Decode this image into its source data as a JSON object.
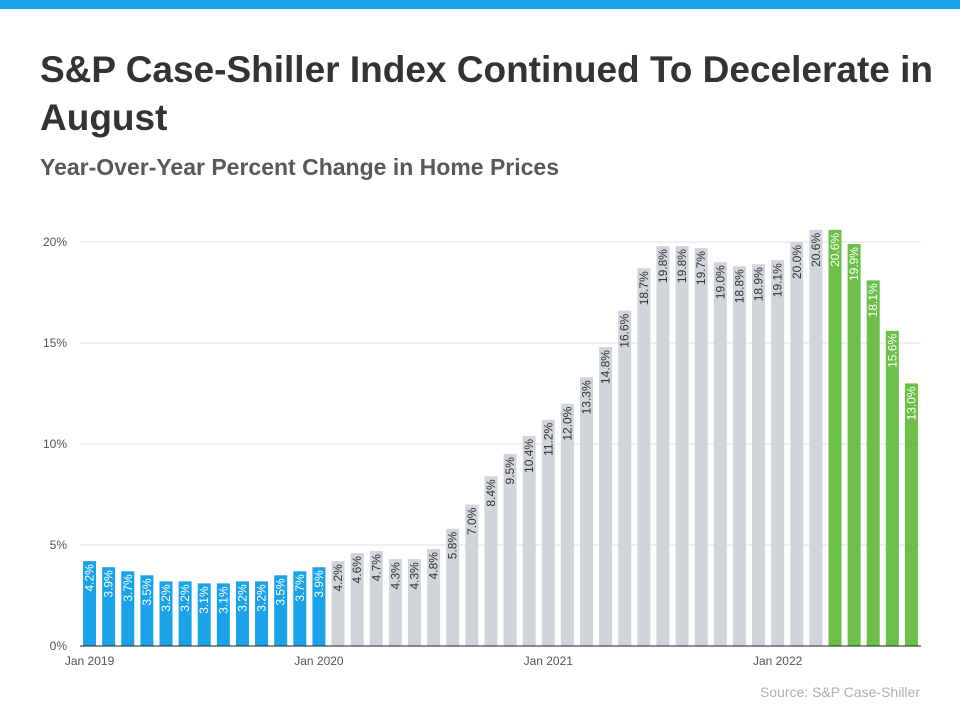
{
  "header": {
    "title": "S&P Case-Shiller Index Continued To Decelerate in August",
    "subtitle": "Year-Over-Year Percent Change in Home Prices"
  },
  "source": "Source: S&P Case-Shiller",
  "colors": {
    "accent": "#1aa3e8",
    "y2019": "#1aa3e8",
    "middle": "#cfd5da",
    "y2022": "#6cc04a",
    "grid": "#e3e3e3",
    "axis": "#222222"
  },
  "chart_data": {
    "type": "bar",
    "title": "",
    "xlabel": "",
    "ylabel": "",
    "ylim": [
      0,
      20
    ],
    "y_ticks": [
      "0%",
      "5%",
      "10%",
      "15%",
      "20%"
    ],
    "y_tick_values": [
      0,
      5,
      10,
      15,
      20
    ],
    "x_tick_labels": [
      "Jan 2019",
      "Jan 2020",
      "Jan 2021",
      "Jan 2022"
    ],
    "x_tick_indices": [
      0,
      12,
      24,
      36
    ],
    "grid": true,
    "legend": "none",
    "categories": [
      "Jan 2019",
      "Feb 2019",
      "Mar 2019",
      "Apr 2019",
      "May 2019",
      "Jun 2019",
      "Jul 2019",
      "Aug 2019",
      "Sep 2019",
      "Oct 2019",
      "Nov 2019",
      "Dec 2019",
      "Jan 2020",
      "Feb 2020",
      "Mar 2020",
      "Apr 2020",
      "May 2020",
      "Jun 2020",
      "Jul 2020",
      "Aug 2020",
      "Sep 2020",
      "Oct 2020",
      "Nov 2020",
      "Dec 2020",
      "Jan 2021",
      "Feb 2021",
      "Mar 2021",
      "Apr 2021",
      "May 2021",
      "Jun 2021",
      "Jul 2021",
      "Aug 2021",
      "Sep 2021",
      "Oct 2021",
      "Nov 2021",
      "Dec 2021",
      "Jan 2022",
      "Feb 2022",
      "Mar 2022",
      "Apr 2022",
      "May 2022",
      "Jun 2022",
      "Jul 2022",
      "Aug 2022"
    ],
    "values": [
      4.2,
      3.9,
      3.7,
      3.5,
      3.2,
      3.2,
      3.1,
      3.1,
      3.2,
      3.2,
      3.5,
      3.7,
      3.9,
      4.2,
      4.6,
      4.7,
      4.3,
      4.3,
      4.8,
      5.8,
      7.0,
      8.4,
      9.5,
      10.4,
      11.2,
      12.0,
      13.3,
      14.8,
      16.6,
      18.7,
      19.8,
      19.8,
      19.7,
      19.0,
      18.8,
      18.9,
      19.1,
      20.0,
      20.6,
      20.6,
      19.9,
      18.1,
      15.6,
      13.0
    ],
    "labels": [
      "4.2%",
      "3.9%",
      "3.7%",
      "3.5%",
      "3.2%",
      "3.2%",
      "3.1%",
      "3.1%",
      "3.2%",
      "3.2%",
      "3.5%",
      "3.7%",
      "3.9%",
      "4.2%",
      "4.6%",
      "4.7%",
      "4.3%",
      "4.3%",
      "4.8%",
      "5.8%",
      "7.0%",
      "8.4%",
      "9.5%",
      "10.4%",
      "11.2%",
      "12.0%",
      "13.3%",
      "14.8%",
      "16.6%",
      "18.7%",
      "19.8%",
      "19.8%",
      "19.7%",
      "19.0%",
      "18.8%",
      "18.9%",
      "19.1%",
      "20.0%",
      "20.6%",
      "20.6%",
      "19.9%",
      "18.1%",
      "15.6%",
      "13.0%"
    ],
    "groups": [
      "y2019",
      "y2019",
      "y2019",
      "y2019",
      "y2019",
      "y2019",
      "y2019",
      "y2019",
      "y2019",
      "y2019",
      "y2019",
      "y2019",
      "y2019",
      "middle",
      "middle",
      "middle",
      "middle",
      "middle",
      "middle",
      "middle",
      "middle",
      "middle",
      "middle",
      "middle",
      "middle",
      "middle",
      "middle",
      "middle",
      "middle",
      "middle",
      "middle",
      "middle",
      "middle",
      "middle",
      "middle",
      "middle",
      "middle",
      "middle",
      "middle",
      "y2022",
      "y2022",
      "y2022",
      "y2022",
      "y2022"
    ]
  }
}
